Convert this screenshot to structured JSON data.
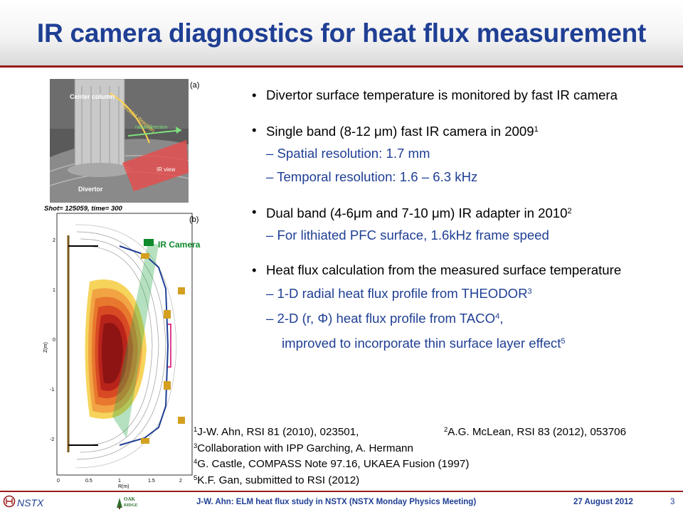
{
  "title": "IR camera diagnostics for heat flux measurement",
  "figure_a": {
    "panel_label": "(a)",
    "center_column": "Center column",
    "toroidal_direction": "toroidal direction",
    "radial_direction": "radial direction",
    "ir_view": "IR view",
    "divertor": "Divertor"
  },
  "figure_b": {
    "panel_label": "(b)",
    "shot_label": "Shot= 125059, time= 300",
    "ir_camera": "IR Camera",
    "ylabel": "Z(m)",
    "xlabel": "R(m)",
    "yticks": [
      "2",
      "1",
      "0",
      "-1",
      "-2"
    ],
    "xticks": [
      "0",
      "0.5",
      "1",
      "1.5",
      "2"
    ]
  },
  "bullets": {
    "b1": "Divertor surface temperature is monitored by fast IR camera",
    "b2": "Single band (8-12 μm) fast IR camera in 2009",
    "b2_sup": "1",
    "b2_s1": "– Spatial resolution: 1.7 mm",
    "b2_s2": "– Temporal resolution: 1.6 – 6.3 kHz",
    "b3": "Dual band (4-6μm and 7-10 μm) IR adapter in 2010",
    "b3_sup": "2",
    "b3_s1": "– For lithiated PFC surface, 1.6kHz frame speed",
    "b4": "Heat flux calculation from the measured surface temperature",
    "b4_s1": "– 1-D radial heat flux profile from THEODOR",
    "b4_s1_sup": "3",
    "b4_s2": "– 2-D (r, Φ) heat flux profile from TACO",
    "b4_s2_sup": "4",
    "b4_s2_tail": ",",
    "b4_s3": "improved to incorporate thin surface layer effect",
    "b4_s3_sup": "5"
  },
  "refs": {
    "r1_num": "1",
    "r1": "J-W. Ahn, RSI 81 (2010), 023501,",
    "r2_num": "2",
    "r2": "A.G. McLean, RSI 83 (2012), 053706",
    "r3_num": "3",
    "r3": "Collaboration with IPP Garching, A. Hermann",
    "r4_num": "4",
    "r4": "G. Castle, COMPASS Note 97.16, UKAEA Fusion (1997)",
    "r5_num": "5",
    "r5": "K.F. Gan, submitted to RSI (2012)"
  },
  "footer": {
    "nstx": "NSTX",
    "oak_ridge": "Oak Ridge National Laboratory",
    "center": "J-W. Ahn: ELM heat flux study in NSTX (NSTX Monday Physics Meeting)",
    "date": "27 August 2012",
    "page": "3"
  },
  "colors": {
    "title_blue": "#1f3f94",
    "accent_red": "#9a1b1b",
    "ir_view_red": "#e84a4a",
    "ir_camera_green": "#0e8a2a"
  }
}
